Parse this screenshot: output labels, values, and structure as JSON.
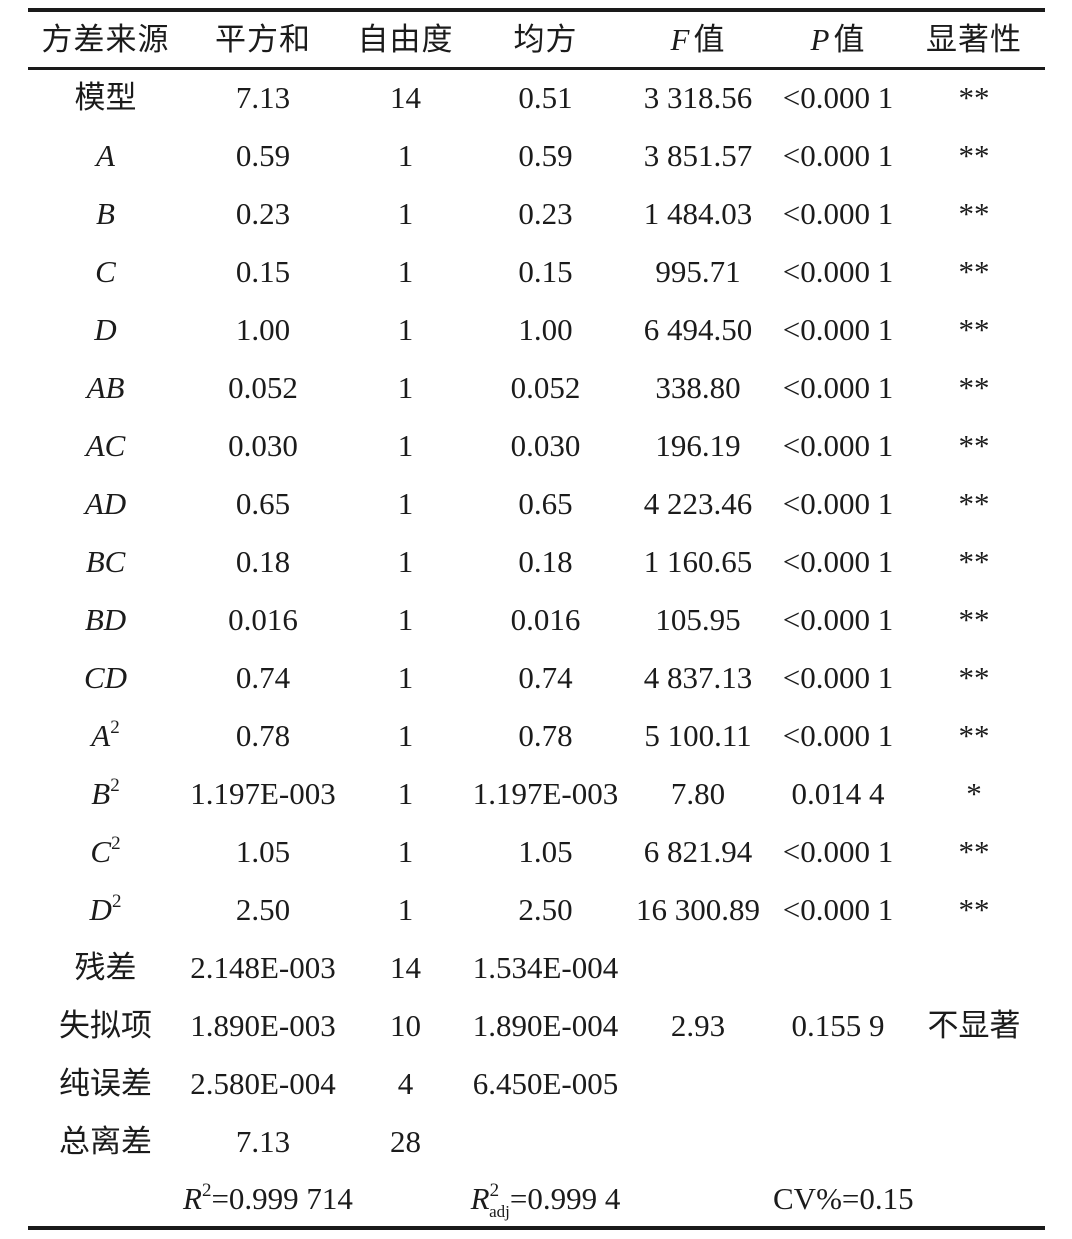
{
  "table": {
    "headers": [
      {
        "italic": "",
        "text": "方差来源"
      },
      {
        "italic": "",
        "text": "平方和"
      },
      {
        "italic": "",
        "text": "自由度"
      },
      {
        "italic": "",
        "text": "均方"
      },
      {
        "italic": "F",
        "text": "值"
      },
      {
        "italic": "P",
        "text": "值"
      },
      {
        "italic": "",
        "text": "显著性"
      }
    ],
    "rows": [
      {
        "source": {
          "label": "模型",
          "latin": false,
          "sup": ""
        },
        "cells": [
          "7.13",
          "14",
          "0.51",
          "3 318.56",
          "<0.000 1",
          "**"
        ]
      },
      {
        "source": {
          "label": "A",
          "latin": true,
          "sup": ""
        },
        "cells": [
          "0.59",
          "1",
          "0.59",
          "3 851.57",
          "<0.000 1",
          "**"
        ]
      },
      {
        "source": {
          "label": "B",
          "latin": true,
          "sup": ""
        },
        "cells": [
          "0.23",
          "1",
          "0.23",
          "1 484.03",
          "<0.000 1",
          "**"
        ]
      },
      {
        "source": {
          "label": "C",
          "latin": true,
          "sup": ""
        },
        "cells": [
          "0.15",
          "1",
          "0.15",
          "995.71",
          "<0.000 1",
          "**"
        ]
      },
      {
        "source": {
          "label": "D",
          "latin": true,
          "sup": ""
        },
        "cells": [
          "1.00",
          "1",
          "1.00",
          "6 494.50",
          "<0.000 1",
          "**"
        ]
      },
      {
        "source": {
          "label": "AB",
          "latin": true,
          "sup": ""
        },
        "cells": [
          "0.052",
          "1",
          "0.052",
          "338.80",
          "<0.000 1",
          "**"
        ]
      },
      {
        "source": {
          "label": "AC",
          "latin": true,
          "sup": ""
        },
        "cells": [
          "0.030",
          "1",
          "0.030",
          "196.19",
          "<0.000 1",
          "**"
        ]
      },
      {
        "source": {
          "label": "AD",
          "latin": true,
          "sup": ""
        },
        "cells": [
          "0.65",
          "1",
          "0.65",
          "4 223.46",
          "<0.000 1",
          "**"
        ]
      },
      {
        "source": {
          "label": "BC",
          "latin": true,
          "sup": ""
        },
        "cells": [
          "0.18",
          "1",
          "0.18",
          "1 160.65",
          "<0.000 1",
          "**"
        ]
      },
      {
        "source": {
          "label": "BD",
          "latin": true,
          "sup": ""
        },
        "cells": [
          "0.016",
          "1",
          "0.016",
          "105.95",
          "<0.000 1",
          "**"
        ]
      },
      {
        "source": {
          "label": "CD",
          "latin": true,
          "sup": ""
        },
        "cells": [
          "0.74",
          "1",
          "0.74",
          "4 837.13",
          "<0.000 1",
          "**"
        ]
      },
      {
        "source": {
          "label": "A",
          "latin": true,
          "sup": "2"
        },
        "cells": [
          "0.78",
          "1",
          "0.78",
          "5 100.11",
          "<0.000 1",
          "**"
        ]
      },
      {
        "source": {
          "label": "B",
          "latin": true,
          "sup": "2"
        },
        "cells": [
          "1.197E-003",
          "1",
          "1.197E-003",
          "7.80",
          "0.014 4",
          "*"
        ]
      },
      {
        "source": {
          "label": "C",
          "latin": true,
          "sup": "2"
        },
        "cells": [
          "1.05",
          "1",
          "1.05",
          "6 821.94",
          "<0.000 1",
          "**"
        ]
      },
      {
        "source": {
          "label": "D",
          "latin": true,
          "sup": "2"
        },
        "cells": [
          "2.50",
          "1",
          "2.50",
          "16 300.89",
          "<0.000 1",
          "**"
        ]
      },
      {
        "source": {
          "label": "残差",
          "latin": false,
          "sup": ""
        },
        "cells": [
          "2.148E-003",
          "14",
          "1.534E-004",
          "",
          "",
          ""
        ]
      },
      {
        "source": {
          "label": "失拟项",
          "latin": false,
          "sup": ""
        },
        "cells": [
          "1.890E-003",
          "10",
          "1.890E-004",
          "2.93",
          "0.155 9",
          "不显著"
        ]
      },
      {
        "source": {
          "label": "纯误差",
          "latin": false,
          "sup": ""
        },
        "cells": [
          "2.580E-004",
          "4",
          "6.450E-005",
          "",
          "",
          ""
        ]
      },
      {
        "source": {
          "label": "总离差",
          "latin": false,
          "sup": ""
        },
        "cells": [
          "7.13",
          "28",
          "",
          "",
          "",
          ""
        ]
      }
    ],
    "footer_stats": [
      {
        "base": "R",
        "italic": true,
        "sup": "2",
        "sub": "",
        "rest": "=0.999 714",
        "col": 1
      },
      {
        "base": "R",
        "italic": true,
        "sup": "2",
        "sub": "adj",
        "rest": "=0.999 4",
        "col": 3
      },
      {
        "base": "CV%",
        "italic": false,
        "sup": "",
        "sub": "",
        "rest": "=0.15",
        "col": 5
      }
    ]
  }
}
